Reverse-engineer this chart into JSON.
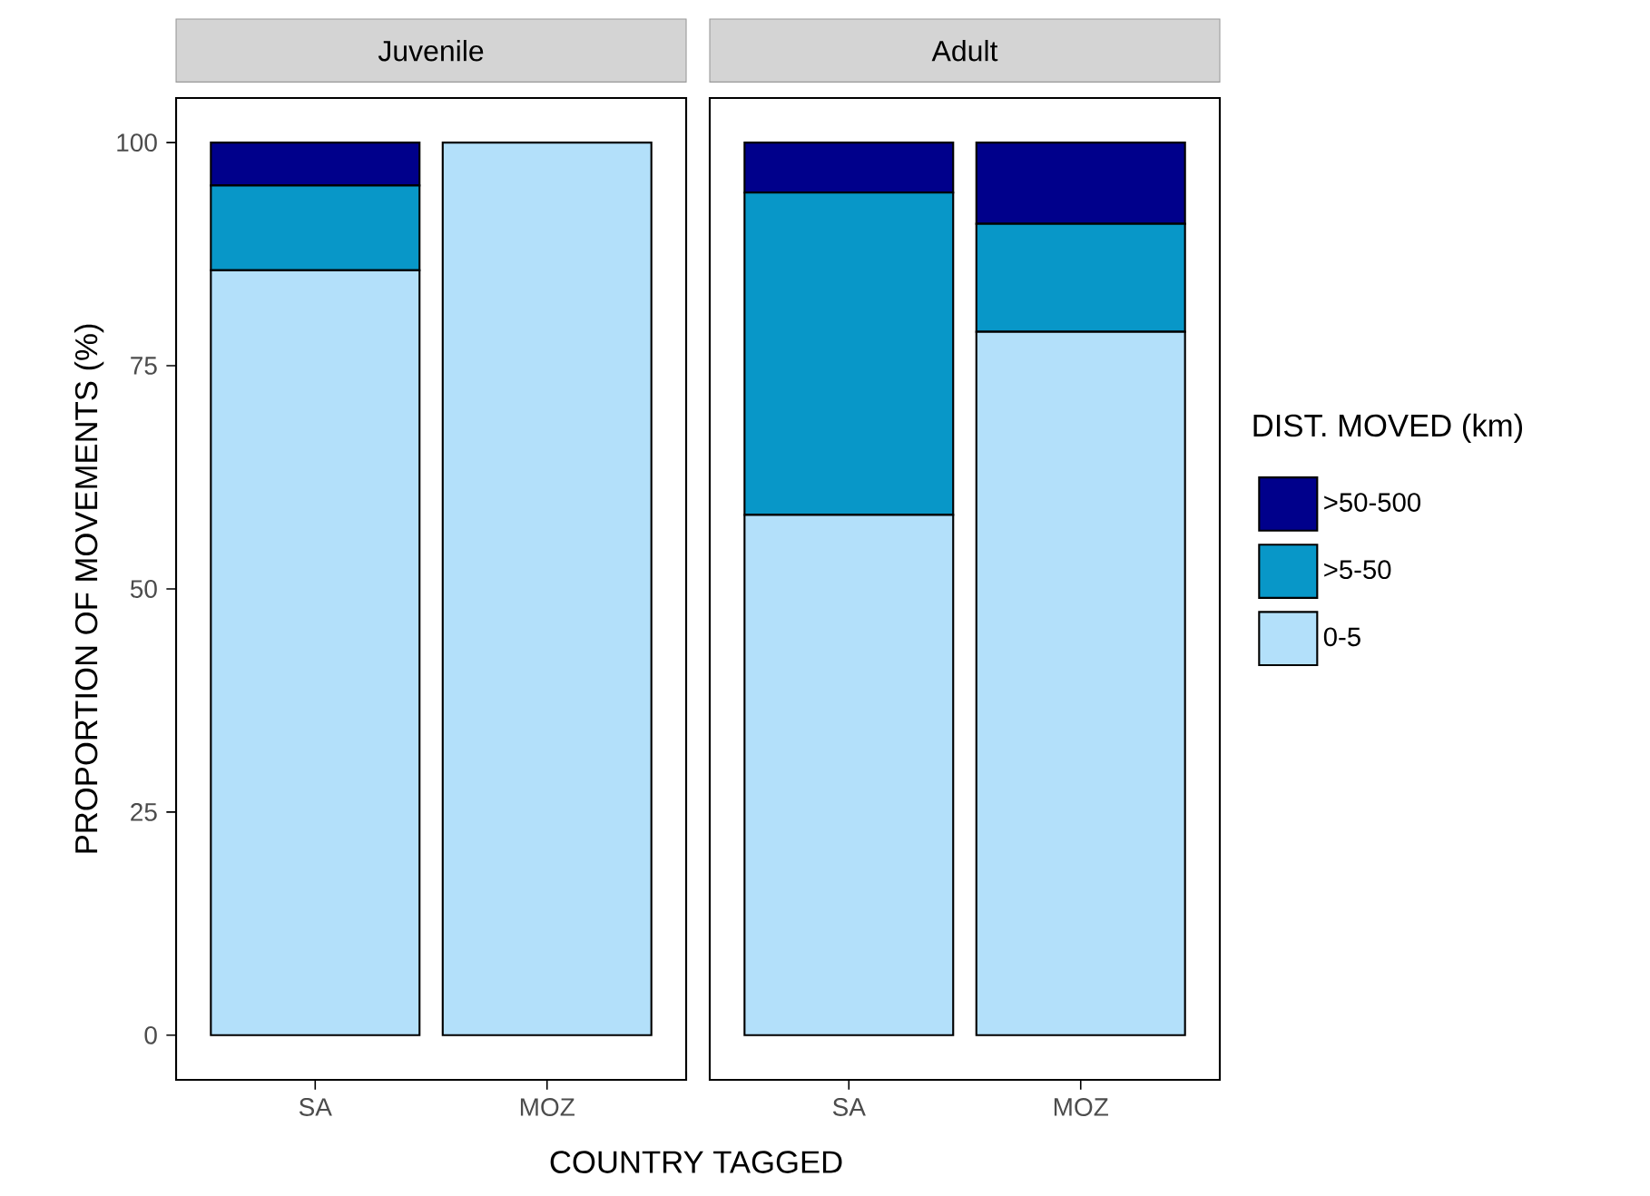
{
  "chart_data": [
    {
      "type": "bar",
      "title": "Juvenile",
      "ylabel": "PROPORTION OF MOVEMENTS (%)",
      "xlabel": "COUNTRY TAGGED",
      "stacked": true,
      "categories": [
        "SA",
        "MOZ"
      ],
      "ylim": [
        -5,
        105
      ],
      "yticks": [
        0,
        25,
        50,
        75,
        100
      ],
      "grid": false,
      "series": [
        {
          "color": "#b3e0fa",
          "values": [
            85.7,
            100
          ]
        },
        {
          "color": "#0897c8",
          "values": [
            9.5,
            0
          ]
        },
        {
          "color": "#00008b",
          "values": [
            4.8,
            0
          ]
        }
      ]
    },
    {
      "type": "bar",
      "title": "Adult",
      "stacked": true,
      "categories": [
        "SA",
        "MOZ"
      ],
      "ylim": [
        -5,
        105
      ],
      "yticks": [
        0,
        25,
        50,
        75,
        100
      ],
      "tick_labels": "x",
      "grid": false,
      "legend": "right",
      "legend_title": "DIST. MOVED (km)",
      "series": [
        {
          "name": "0-5",
          "color": "#b3e0fa",
          "values": [
            58.3,
            78.8
          ]
        },
        {
          "name": ">5-50",
          "color": "#0897c8",
          "values": [
            36.1,
            12.1
          ]
        },
        {
          "name": ">50-500",
          "color": "#00008b",
          "values": [
            5.6,
            9.1
          ]
        }
      ]
    }
  ]
}
